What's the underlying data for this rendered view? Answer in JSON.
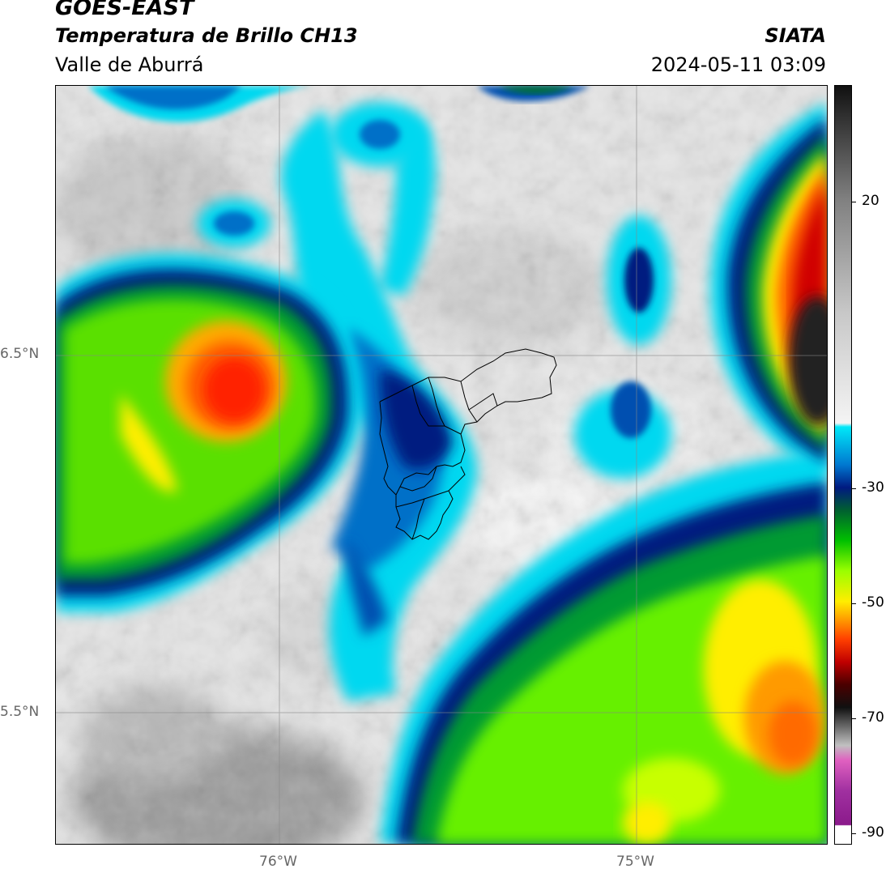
{
  "header": {
    "satellite": "GOES-EAST",
    "product": "Temperatura de Brillo CH13",
    "region": "Valle de Aburrá",
    "brand": "SIATA",
    "timestamp": "2024-05-11 03:09"
  },
  "map": {
    "lat_labels": [
      "6.5°N",
      "5.5°N"
    ],
    "lon_labels": [
      "76°W",
      "75°W"
    ]
  },
  "colorbar": {
    "tick_labels": [
      "20",
      "-30",
      "-50",
      "-70",
      "-90"
    ],
    "colors": {
      "warm_white": "#ffffff",
      "magenta": "#8b1a8b",
      "pink": "#e060c0",
      "black": "#101010",
      "dark_red": "#8b0000",
      "red": "#ff2000",
      "orange": "#ff8c00",
      "yellow": "#ffee00",
      "lime": "#9aff00",
      "green": "#00b400",
      "dark_green": "#006030",
      "navy": "#001a80",
      "blue": "#0060c0",
      "cyan": "#00e0f0",
      "light_grey": "#f2f2f2",
      "mid_grey": "#a0a0a0",
      "dark_grey": "#202020"
    }
  }
}
